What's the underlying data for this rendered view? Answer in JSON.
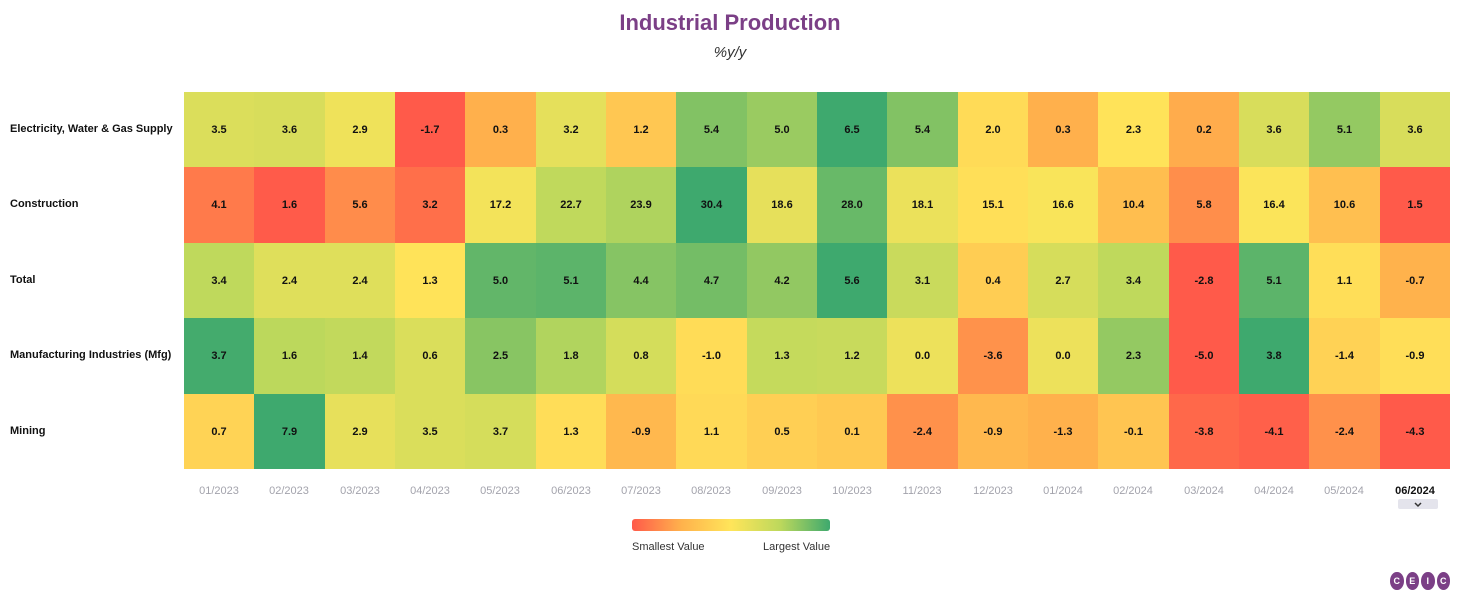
{
  "chart_data": {
    "type": "heatmap",
    "title": "Industrial Production",
    "subtitle": "%y/y",
    "columns": [
      "01/2023",
      "02/2023",
      "03/2023",
      "04/2023",
      "05/2023",
      "06/2023",
      "07/2023",
      "08/2023",
      "09/2023",
      "10/2023",
      "11/2023",
      "12/2023",
      "01/2024",
      "02/2024",
      "03/2024",
      "04/2024",
      "05/2024",
      "06/2024"
    ],
    "selected_column": "06/2024",
    "rows": [
      {
        "name": "Electricity, Water & Gas Supply",
        "values": [
          3.5,
          3.6,
          2.9,
          -1.7,
          0.3,
          3.2,
          1.2,
          5.4,
          5.0,
          6.5,
          5.4,
          2.0,
          0.3,
          2.3,
          0.2,
          3.6,
          5.1,
          3.6
        ]
      },
      {
        "name": "Construction",
        "values": [
          4.1,
          1.6,
          5.6,
          3.2,
          17.2,
          22.7,
          23.9,
          30.4,
          18.6,
          28.0,
          18.1,
          15.1,
          16.6,
          10.4,
          5.8,
          16.4,
          10.6,
          1.5
        ]
      },
      {
        "name": "Total",
        "values": [
          3.4,
          2.4,
          2.4,
          1.3,
          5.0,
          5.1,
          4.4,
          4.7,
          4.2,
          5.6,
          3.1,
          0.4,
          2.7,
          3.4,
          -2.8,
          5.1,
          1.1,
          -0.7
        ]
      },
      {
        "name": "Manufacturing Industries (Mfg)",
        "values": [
          3.7,
          1.6,
          1.4,
          0.6,
          2.5,
          1.8,
          0.8,
          -1.0,
          1.3,
          1.2,
          0.0,
          -3.6,
          0.0,
          2.3,
          -5.0,
          3.8,
          -1.4,
          -0.9
        ]
      },
      {
        "name": "Mining",
        "values": [
          0.7,
          7.9,
          2.9,
          3.5,
          3.7,
          1.3,
          -0.9,
          1.1,
          0.5,
          0.1,
          -2.4,
          -0.9,
          -1.3,
          -0.1,
          -3.8,
          -4.1,
          -2.4,
          -4.3
        ]
      }
    ],
    "color_scale": [
      "#ff5a4a",
      "#ffb24c",
      "#ffe55a",
      "#bcd85c",
      "#3ea96e"
    ],
    "color_scale_per": "row",
    "legend": {
      "min_label": "Smallest Value",
      "max_label": "Largest Value",
      "position": "bottom-center"
    }
  },
  "brand": {
    "logo_letters": [
      "C",
      "E",
      "I",
      "C"
    ],
    "color": "#7b3f86"
  },
  "icons": {
    "selector": "chevron-down-icon"
  }
}
